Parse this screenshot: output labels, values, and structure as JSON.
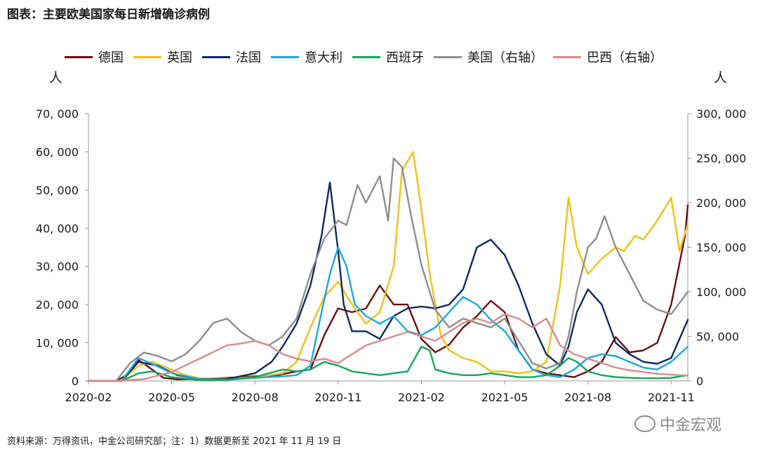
{
  "title": "图表：主要欧美国家每日新增确诊病例",
  "source": "资料来源：万得资讯，中金公司研究部；注：1）数据更新至 2021 年 11 月 19 日",
  "watermark": "中金宏观",
  "chart_data": {
    "type": "line",
    "title": "图表：主要欧美国家每日新增确诊病例",
    "ylabel_left": "人",
    "ylabel_right": "人",
    "x_domain": [
      "2020-02",
      "2021-11-19"
    ],
    "x_ticks": [
      "2020-02",
      "2020-05",
      "2020-08",
      "2020-11",
      "2021-02",
      "2021-05",
      "2021-08",
      "2021-11"
    ],
    "ylim_left": [
      0,
      70000
    ],
    "ylim_right": [
      0,
      300000
    ],
    "yticks_left": [
      "0",
      "10, 000",
      "20, 000",
      "30, 000",
      "40, 000",
      "50, 000",
      "60, 000",
      "70, 000"
    ],
    "yticks_right": [
      "0",
      "50, 000",
      "100, 000",
      "150, 000",
      "200, 000",
      "250, 000",
      "300, 000"
    ],
    "series": [
      {
        "name": "德国",
        "color": "#6b0f0f",
        "axis": "left",
        "x": [
          0,
          1,
          1.5,
          1.8,
          2.2,
          2.7,
          3.2,
          4,
          5,
          6,
          6.8,
          7.5,
          8,
          8.5,
          9,
          9.5,
          10,
          10.5,
          11,
          11.5,
          12,
          12.5,
          13,
          13.5,
          14,
          14.5,
          15,
          15.5,
          16,
          16.5,
          17,
          17.5,
          18,
          18.5,
          19,
          19.5,
          20,
          20.5,
          21,
          21.5,
          21.6
        ],
        "y": [
          0,
          0,
          2000,
          5500,
          3500,
          800,
          400,
          500,
          800,
          1200,
          1500,
          2500,
          3000,
          12000,
          19000,
          18000,
          19000,
          25000,
          20000,
          20000,
          11000,
          7500,
          9500,
          14000,
          17000,
          21000,
          18000,
          8000,
          3000,
          2000,
          1500,
          1000,
          2500,
          5000,
          11500,
          7500,
          8000,
          10000,
          20000,
          38000,
          46000
        ]
      },
      {
        "name": "英国",
        "color": "#f2c016",
        "axis": "left",
        "x": [
          0,
          1.2,
          1.8,
          2.3,
          3,
          3.5,
          4,
          5,
          6,
          7,
          7.5,
          8,
          8.5,
          9,
          9.5,
          10,
          10.5,
          11,
          11.3,
          11.7,
          12,
          12.3,
          12.7,
          13,
          13.5,
          14,
          14.5,
          15,
          15.5,
          16,
          16.5,
          17,
          17.3,
          17.6,
          18,
          18.5,
          19,
          19.3,
          19.7,
          20,
          20.5,
          21,
          21.3,
          21.6
        ],
        "y": [
          0,
          0,
          4000,
          5000,
          3000,
          1500,
          700,
          600,
          1000,
          2000,
          5000,
          14000,
          22000,
          26000,
          20000,
          15000,
          18000,
          30000,
          55000,
          60000,
          45000,
          28000,
          12000,
          8000,
          6000,
          5000,
          2500,
          2500,
          2000,
          2500,
          5000,
          25000,
          48000,
          35000,
          28000,
          32000,
          35000,
          34000,
          38000,
          37000,
          42000,
          48000,
          34000,
          41000
        ]
      },
      {
        "name": "法国",
        "color": "#0d2a5e",
        "axis": "left",
        "x": [
          0,
          1.2,
          1.8,
          2.5,
          3.2,
          4,
          5,
          6,
          6.6,
          7,
          7.5,
          8,
          8.4,
          8.7,
          9,
          9.2,
          9.5,
          10,
          10.5,
          11,
          11.5,
          12,
          12.5,
          13,
          13.5,
          14,
          14.5,
          15,
          15.5,
          16,
          16.5,
          17,
          17.3,
          17.6,
          18,
          18.5,
          19,
          19.5,
          20,
          20.5,
          21,
          21.6
        ],
        "y": [
          0,
          0,
          5000,
          4000,
          1500,
          500,
          500,
          2000,
          5000,
          9000,
          15000,
          25000,
          38000,
          52000,
          34000,
          20000,
          13000,
          13000,
          11000,
          17000,
          19000,
          19500,
          19000,
          20000,
          24000,
          35000,
          37000,
          33000,
          25000,
          15000,
          7000,
          4000,
          9000,
          18000,
          24000,
          20000,
          10000,
          7000,
          5000,
          4500,
          6000,
          16000
        ]
      },
      {
        "name": "意大利",
        "color": "#1da7e0",
        "axis": "left",
        "x": [
          0,
          1.2,
          1.5,
          1.8,
          2.3,
          3,
          4,
          5,
          6,
          7,
          7.5,
          8,
          8.4,
          8.7,
          9,
          9.3,
          9.6,
          10,
          10.5,
          11,
          11.5,
          12,
          12.5,
          13,
          13.5,
          14,
          14.5,
          15,
          15.5,
          16,
          16.5,
          17,
          17.5,
          18,
          18.5,
          19,
          19.5,
          20,
          20.5,
          21,
          21.6
        ],
        "y": [
          0,
          0,
          3000,
          6000,
          4500,
          2000,
          500,
          300,
          800,
          1200,
          1500,
          4000,
          18000,
          28000,
          35000,
          30000,
          20000,
          17000,
          15000,
          17000,
          13000,
          12000,
          14000,
          18000,
          22000,
          20000,
          16000,
          13000,
          8000,
          3000,
          1500,
          1000,
          3000,
          6000,
          7000,
          6500,
          5000,
          3500,
          3000,
          5000,
          9000
        ]
      },
      {
        "name": "西班牙",
        "color": "#13a75a",
        "axis": "left",
        "x": [
          0,
          1.2,
          1.8,
          2.3,
          3,
          4,
          5,
          6,
          6.5,
          7,
          7.5,
          8,
          8.5,
          9,
          9.5,
          10,
          10.5,
          11,
          11.5,
          12,
          12.3,
          12.5,
          13,
          13.5,
          14,
          14.5,
          15,
          15.5,
          16,
          16.5,
          17,
          17.3,
          17.6,
          18,
          18.5,
          19,
          19.5,
          20,
          20.5,
          21,
          21.6
        ],
        "y": [
          0,
          0,
          2000,
          2500,
          1000,
          200,
          300,
          1000,
          2000,
          3000,
          2500,
          3000,
          5000,
          4000,
          2500,
          2000,
          1500,
          2000,
          2500,
          9000,
          8000,
          3000,
          2000,
          1500,
          1500,
          2000,
          1500,
          1000,
          1000,
          1500,
          4000,
          6000,
          5000,
          2500,
          1500,
          1000,
          800,
          700,
          700,
          800,
          1500
        ]
      },
      {
        "name": "美国（右轴）",
        "color": "#8e8e8e",
        "axis": "right",
        "x": [
          0,
          1,
          1.5,
          2,
          2.5,
          3,
          3.5,
          4,
          4.5,
          5,
          5.5,
          6,
          6.5,
          7,
          7.5,
          8,
          8.5,
          9,
          9.3,
          9.7,
          10,
          10.5,
          10.8,
          11,
          11.3,
          11.6,
          12,
          12.5,
          13,
          13.5,
          14,
          14.5,
          15,
          15.5,
          16,
          16.5,
          17,
          17.3,
          17.6,
          18,
          18.3,
          18.6,
          19,
          19.5,
          20,
          20.5,
          21,
          21.6
        ],
        "y": [
          0,
          0,
          20000,
          32000,
          28000,
          22000,
          30000,
          45000,
          65000,
          70000,
          55000,
          45000,
          40000,
          50000,
          70000,
          120000,
          160000,
          180000,
          175000,
          220000,
          200000,
          230000,
          180000,
          250000,
          240000,
          190000,
          130000,
          80000,
          60000,
          70000,
          65000,
          60000,
          70000,
          45000,
          20000,
          14000,
          20000,
          50000,
          100000,
          150000,
          160000,
          185000,
          150000,
          120000,
          90000,
          80000,
          75000,
          100000
        ]
      },
      {
        "name": "巴西（右轴）",
        "color": "#d98b8b",
        "axis": "right",
        "x": [
          0,
          1,
          2,
          3,
          4,
          5,
          5.5,
          6,
          6.5,
          7,
          7.5,
          8,
          8.5,
          9,
          9.5,
          10,
          10.5,
          11,
          11.5,
          12,
          12.5,
          13,
          13.5,
          14,
          14.5,
          15,
          15.5,
          16,
          16.5,
          17,
          17.5,
          18,
          18.5,
          19,
          19.5,
          20,
          20.5,
          21,
          21.6
        ],
        "y": [
          0,
          0,
          2000,
          10000,
          25000,
          40000,
          42000,
          45000,
          40000,
          30000,
          25000,
          22000,
          25000,
          20000,
          30000,
          40000,
          45000,
          50000,
          55000,
          50000,
          45000,
          55000,
          65000,
          70000,
          65000,
          75000,
          70000,
          60000,
          70000,
          40000,
          30000,
          25000,
          20000,
          15000,
          12000,
          10000,
          8000,
          7000,
          6000
        ]
      }
    ]
  }
}
